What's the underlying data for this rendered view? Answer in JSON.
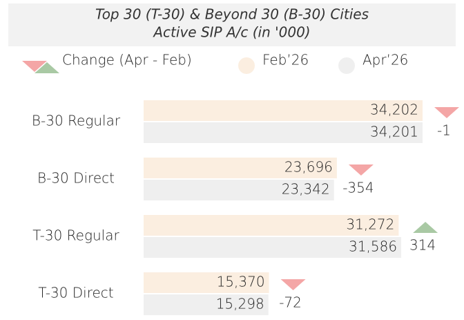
{
  "chart_data": {
    "type": "bar",
    "title": "Top 30 (T-30) & Beyond 30 (B-30) Cities",
    "subtitle": "Active SIP A/c (in '000)",
    "categories": [
      "B-30 Regular",
      "B-30 Direct",
      "T-30 Regular",
      "T-30 Direct"
    ],
    "series": [
      {
        "name": "Feb’26",
        "color": "#fbeee0",
        "values": [
          34202,
          23696,
          31272,
          15370
        ],
        "value_labels": [
          "34,202",
          "23,696",
          "31,272",
          "15,370"
        ]
      },
      {
        "name": "Apr’26",
        "color": "#efefef",
        "values": [
          34201,
          23342,
          31586,
          15298
        ],
        "value_labels": [
          "34,201",
          "23,342",
          "31,586",
          "15,298"
        ]
      }
    ],
    "change": {
      "name": "Change (Apr - Feb)",
      "values": [
        -1,
        -354,
        314,
        -72
      ],
      "up_color": "#a9c9a4",
      "down_color": "#f4a6a6"
    }
  }
}
